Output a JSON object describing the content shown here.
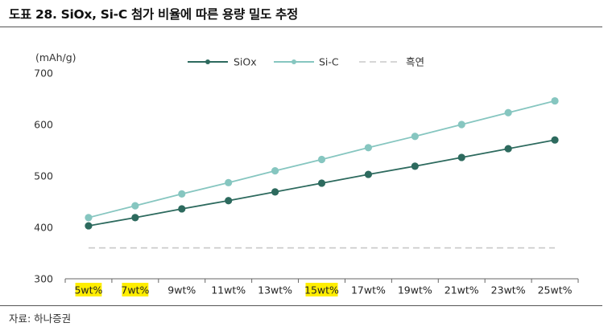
{
  "title": "도표 28. SiOx, Si-C 첨가 비율에 따른 용량 밀도 추정",
  "source": "자료: 하나증권",
  "colors": {
    "siox": "#2d6a5e",
    "sic": "#86c6c0",
    "graphite": "#c8c8c8",
    "highlight": "#ffee00",
    "axis": "#333333"
  },
  "chart_data": {
    "type": "line",
    "title": "",
    "ylabel": "(mAh/g)",
    "xlabel": "",
    "ylim": [
      300,
      700
    ],
    "yticks": [
      300,
      400,
      500,
      600,
      700
    ],
    "grid": false,
    "legend_position": "top",
    "categories": [
      "5wt%",
      "7wt%",
      "9wt%",
      "11wt%",
      "13wt%",
      "15wt%",
      "17wt%",
      "19wt%",
      "21wt%",
      "23wt%",
      "25wt%"
    ],
    "highlighted_categories": [
      "5wt%",
      "7wt%",
      "15wt%"
    ],
    "series": [
      {
        "name": "SiOx",
        "values": [
          403,
          419,
          436,
          452,
          469,
          486,
          503,
          519,
          536,
          553,
          570
        ]
      },
      {
        "name": "Si-C",
        "values": [
          419,
          442,
          465,
          487,
          510,
          532,
          555,
          577,
          600,
          623,
          646
        ]
      },
      {
        "name": "흑연",
        "values": [
          360,
          360,
          360,
          360,
          360,
          360,
          360,
          360,
          360,
          360,
          360
        ]
      }
    ]
  }
}
